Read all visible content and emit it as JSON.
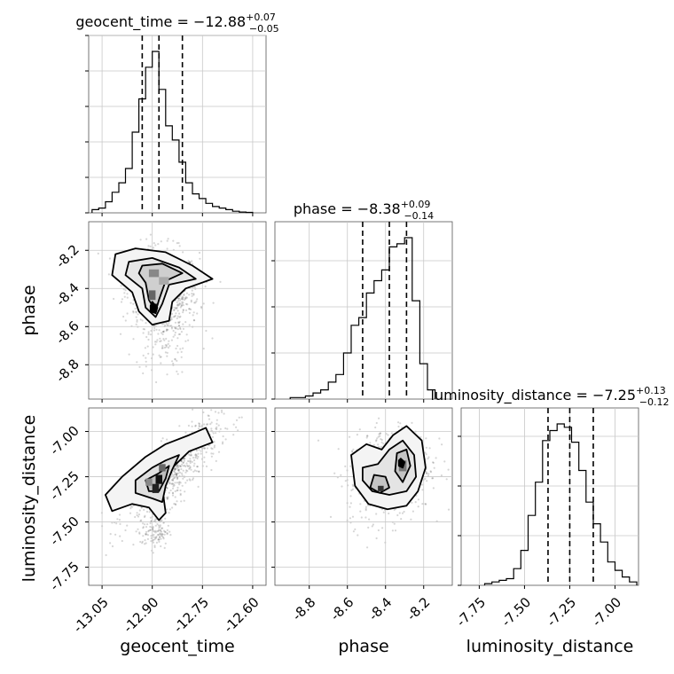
{
  "chart_data": {
    "type": "corner",
    "parameters": [
      "geocent_time",
      "phase",
      "luminosity_distance"
    ],
    "axis_labels": {
      "x": [
        "geocent_time",
        "phase",
        "luminosity_distance"
      ],
      "y_row2": "phase",
      "y_row3": "luminosity_distance"
    },
    "ranges": {
      "geocent_time": [
        -13.09,
        -12.56
      ],
      "phase": [
        -8.98,
        -8.05
      ],
      "luminosity_distance": [
        -7.85,
        -6.87
      ]
    },
    "ticks": {
      "geocent_time": [
        "-13.05",
        "-12.90",
        "-12.75",
        "-12.60"
      ],
      "geocent_time_values": [
        -13.05,
        -12.9,
        -12.75,
        -12.6
      ],
      "phase_y": [
        "-8.2",
        "-8.4",
        "-8.6",
        "-8.8"
      ],
      "phase_y_values": [
        -8.2,
        -8.4,
        -8.6,
        -8.8
      ],
      "phase_x": [
        "-8.8",
        "-8.6",
        "-8.4",
        "-8.2"
      ],
      "phase_x_values": [
        -8.8,
        -8.6,
        -8.4,
        -8.2
      ],
      "luminosity_distance_y": [
        "-7.00",
        "-7.25",
        "-7.50",
        "-7.75"
      ],
      "luminosity_distance_y_values": [
        -7.0,
        -7.25,
        -7.5,
        -7.75
      ],
      "luminosity_distance_x": [
        "-7.75",
        "-7.50",
        "-7.25",
        "-7.00"
      ],
      "luminosity_distance_x_values": [
        -7.75,
        -7.5,
        -7.25,
        -7.0
      ]
    },
    "titles": [
      {
        "param": "geocent_time",
        "prefix": "geocent_time = −12.88",
        "sup": "+0.07",
        "sub": "−0.05"
      },
      {
        "param": "phase",
        "prefix": "phase = −8.38",
        "sup": "+0.09",
        "sub": "−0.14"
      },
      {
        "param": "luminosity_distance",
        "prefix": "luminosity_distance = −7.25",
        "sup": "+0.13",
        "sub": "−0.12"
      }
    ],
    "quantiles": {
      "geocent_time": [
        -12.93,
        -12.88,
        -12.81
      ],
      "phase": [
        -8.52,
        -8.38,
        -8.29
      ],
      "luminosity_distance": [
        -7.37,
        -7.25,
        -7.12
      ]
    },
    "histograms": {
      "geocent_time": {
        "bin_edges": [
          -13.08,
          -13.06,
          -13.04,
          -13.02,
          -13.0,
          -12.98,
          -12.96,
          -12.94,
          -12.92,
          -12.9,
          -12.88,
          -12.86,
          -12.84,
          -12.82,
          -12.8,
          -12.78,
          -12.76,
          -12.74,
          -12.72,
          -12.7,
          -12.68,
          -12.66,
          -12.64,
          -12.62,
          -12.6
        ],
        "counts": [
          2,
          3,
          7,
          13,
          19,
          28,
          51,
          72,
          92,
          102,
          78,
          55,
          46,
          32,
          19,
          12,
          9,
          6,
          4,
          3,
          2,
          1,
          0.5,
          0.3
        ]
      },
      "phase": {
        "bin_edges": [
          -8.9,
          -8.86,
          -8.82,
          -8.78,
          -8.74,
          -8.7,
          -8.66,
          -8.62,
          -8.58,
          -8.54,
          -8.5,
          -8.46,
          -8.42,
          -8.38,
          -8.34,
          -8.3,
          -8.26,
          -8.22,
          -8.18,
          -8.14
        ],
        "counts": [
          1,
          1,
          2,
          4,
          6,
          11,
          16,
          30,
          48,
          53,
          69,
          77,
          84,
          99,
          101,
          105,
          64,
          23,
          6
        ]
      },
      "luminosity_distance": {
        "bin_edges": [
          -7.72,
          -7.68,
          -7.64,
          -7.6,
          -7.56,
          -7.52,
          -7.48,
          -7.44,
          -7.4,
          -7.36,
          -7.32,
          -7.28,
          -7.24,
          -7.2,
          -7.16,
          -7.12,
          -7.08,
          -7.04,
          -7.0,
          -6.96,
          -6.92,
          -6.88
        ],
        "counts": [
          1,
          2,
          3,
          4,
          10,
          21,
          42,
          62,
          87,
          93,
          97,
          95,
          86,
          69,
          50,
          37,
          26,
          14,
          9,
          5,
          2
        ]
      }
    },
    "grid": true
  }
}
